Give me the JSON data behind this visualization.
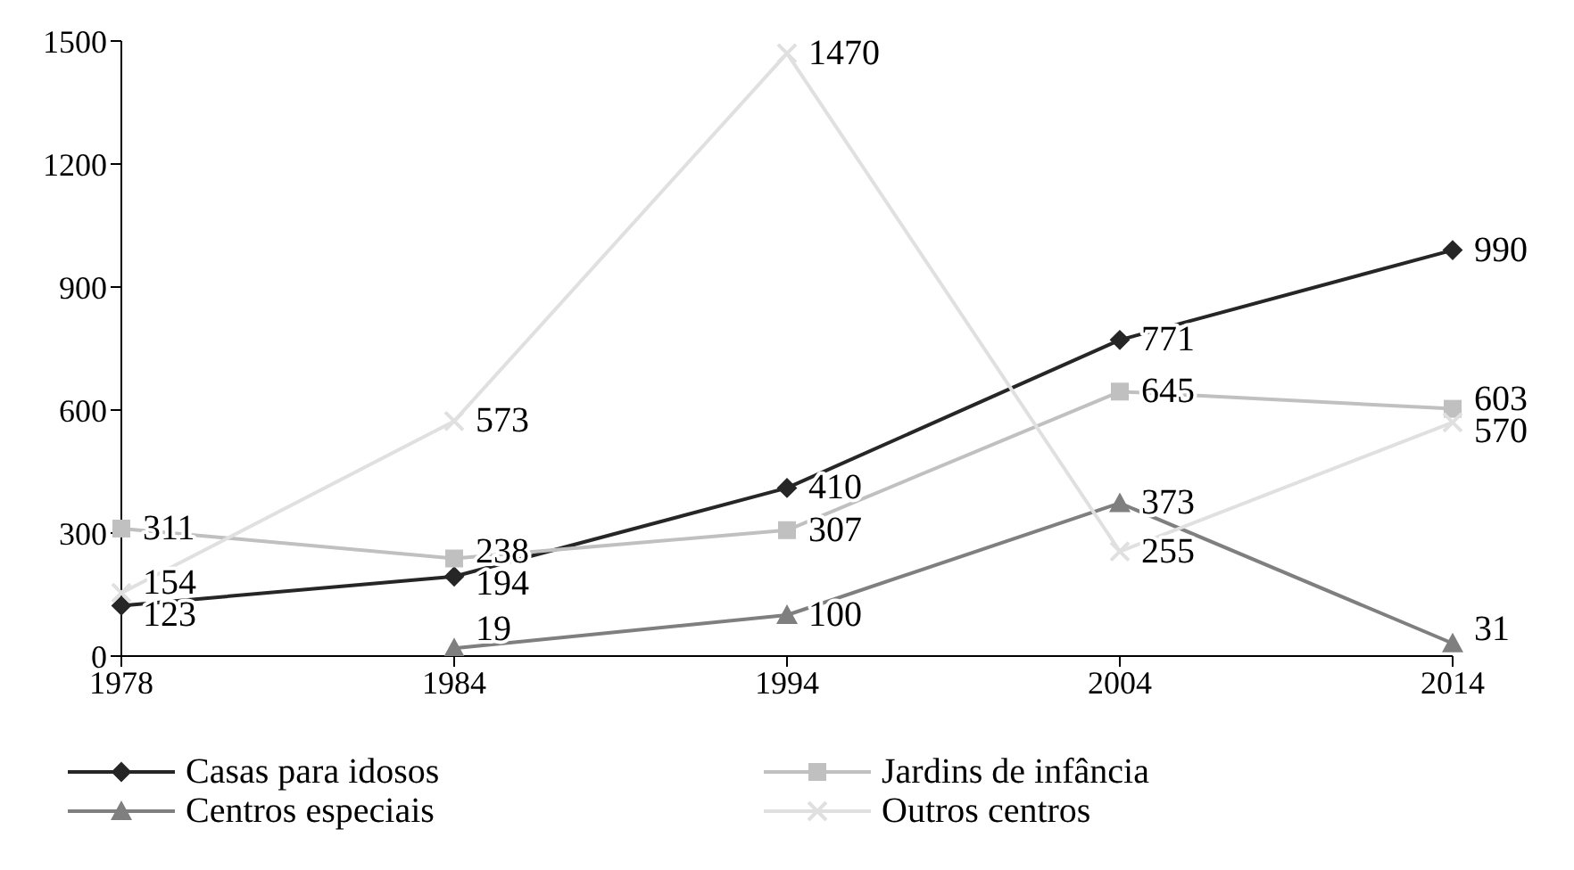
{
  "chart_data": {
    "type": "line",
    "categories": [
      "1978",
      "1984",
      "1994",
      "2004",
      "2014"
    ],
    "series": [
      {
        "name": "Casas para idosos",
        "color": "#262626",
        "marker": "diamond",
        "values": [
          123,
          194,
          410,
          771,
          990
        ]
      },
      {
        "name": "Jardins de infância",
        "color": "#c0c0c0",
        "marker": "square",
        "values": [
          311,
          238,
          307,
          645,
          603
        ]
      },
      {
        "name": "Centros especiais",
        "color": "#7f7f7f",
        "marker": "triangle",
        "values": [
          null,
          19,
          100,
          373,
          31
        ]
      },
      {
        "name": "Outros centros",
        "color": "#e0e0e0",
        "marker": "cross",
        "values": [
          154,
          573,
          1470,
          255,
          570
        ]
      }
    ],
    "ylim": [
      0,
      1500
    ],
    "yticks": [
      0,
      300,
      600,
      900,
      1200,
      1500
    ],
    "grid": false,
    "legend": "bottom",
    "data_labels": true
  }
}
